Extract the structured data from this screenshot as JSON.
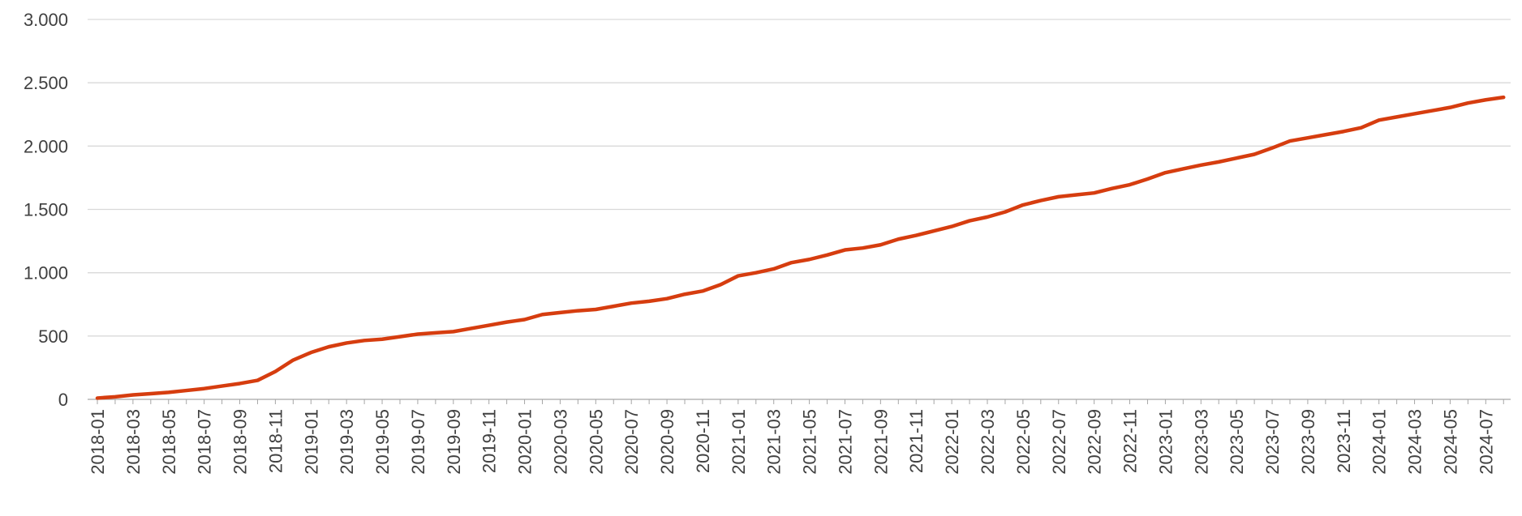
{
  "chart_data": {
    "type": "line",
    "color": "#d63d0f",
    "grid": true,
    "categories": [
      "2018-01",
      null,
      "2018-03",
      null,
      "2018-05",
      null,
      "2018-07",
      null,
      "2018-09",
      null,
      "2018-11",
      null,
      "2019-01",
      null,
      "2019-03",
      null,
      "2019-05",
      null,
      "2019-07",
      null,
      "2019-09",
      null,
      "2019-11",
      null,
      "2020-01",
      null,
      "2020-03",
      null,
      "2020-05",
      null,
      "2020-07",
      null,
      "2020-09",
      null,
      "2020-11",
      null,
      "2021-01",
      null,
      "2021-03",
      null,
      "2021-05",
      null,
      "2021-07",
      null,
      "2021-09",
      null,
      "2021-11",
      null,
      "2022-01",
      null,
      "2022-03",
      null,
      "2022-05",
      null,
      "2022-07",
      null,
      "2022-09",
      null,
      "2022-11",
      null,
      "2023-01",
      null,
      "2023-03",
      null,
      "2023-05",
      null,
      "2023-07",
      null,
      "2023-09",
      null,
      "2023-11",
      null,
      "2024-01",
      null,
      "2024-03",
      null,
      "2024-05",
      null,
      "2024-07",
      null
    ],
    "values": [
      10,
      20,
      35,
      45,
      55,
      70,
      85,
      105,
      125,
      150,
      220,
      310,
      370,
      415,
      445,
      465,
      475,
      495,
      515,
      525,
      535,
      560,
      585,
      610,
      630,
      670,
      685,
      700,
      710,
      735,
      760,
      775,
      795,
      830,
      855,
      905,
      975,
      1000,
      1030,
      1080,
      1105,
      1140,
      1180,
      1195,
      1220,
      1265,
      1295,
      1330,
      1365,
      1410,
      1440,
      1480,
      1535,
      1570,
      1600,
      1615,
      1630,
      1665,
      1695,
      1740,
      1790,
      1820,
      1850,
      1875,
      1905,
      1935,
      1985,
      2040,
      2065,
      2090,
      2115,
      2145,
      2205,
      2230,
      2255,
      2280,
      2305,
      2340,
      2365,
      2385
    ],
    "ylim": [
      0,
      3000
    ],
    "yticks": [
      0,
      500,
      {
        "value": 1000,
        "label": "1.000"
      },
      {
        "value": 1500,
        "label": "1.500"
      },
      {
        "value": 2000,
        "label": "2.000"
      },
      {
        "value": 2500,
        "label": "2.500"
      },
      {
        "value": 3000,
        "label": "3.000"
      }
    ]
  }
}
